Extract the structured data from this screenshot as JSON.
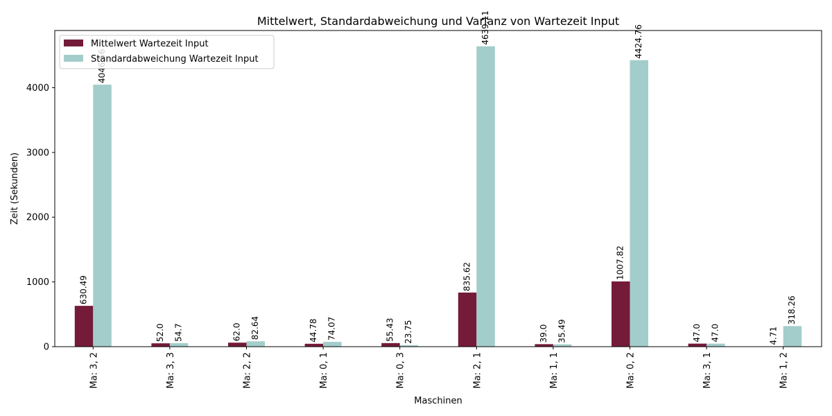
{
  "chart_data": {
    "type": "bar",
    "title": "Mittelwert, Standardabweichung und Varianz von Wartezeit Input",
    "xlabel": "Maschinen",
    "ylabel": "Zeit (Sekunden)",
    "categories": [
      "Ma: 3, 2",
      "Ma: 3, 3",
      "Ma: 2, 2",
      "Ma: 0, 1",
      "Ma: 0, 3",
      "Ma: 2, 1",
      "Ma: 1, 1",
      "Ma: 0, 2",
      "Ma: 3, 1",
      "Ma: 1, 2"
    ],
    "series": [
      {
        "name": "Mittelwert Wartezeit Input",
        "color": "#741b3a",
        "values": [
          630.49,
          52.0,
          62.0,
          44.78,
          55.43,
          835.62,
          39.0,
          1007.82,
          47.0,
          4.71
        ],
        "labels": [
          "630.49",
          "52.0",
          "62.0",
          "44.78",
          "55.43",
          "835.62",
          "39.0",
          "1007.82",
          "47.0",
          "4.71"
        ]
      },
      {
        "name": "Standardabweichung Wartezeit Input",
        "color": "#a3cdca",
        "values": [
          4046.56,
          54.7,
          82.64,
          74.07,
          23.75,
          4639.11,
          35.49,
          4424.76,
          47.0,
          318.26
        ],
        "labels": [
          "4046.56",
          "54.7",
          "82.64",
          "74.07",
          "23.75",
          "4639.11",
          "35.49",
          "4424.76",
          "47.0",
          "318.26"
        ]
      }
    ],
    "yticks": [
      0,
      1000,
      2000,
      3000,
      4000
    ],
    "ylim": [
      0,
      4883
    ],
    "grid": false,
    "legend_position": "upper-left"
  }
}
